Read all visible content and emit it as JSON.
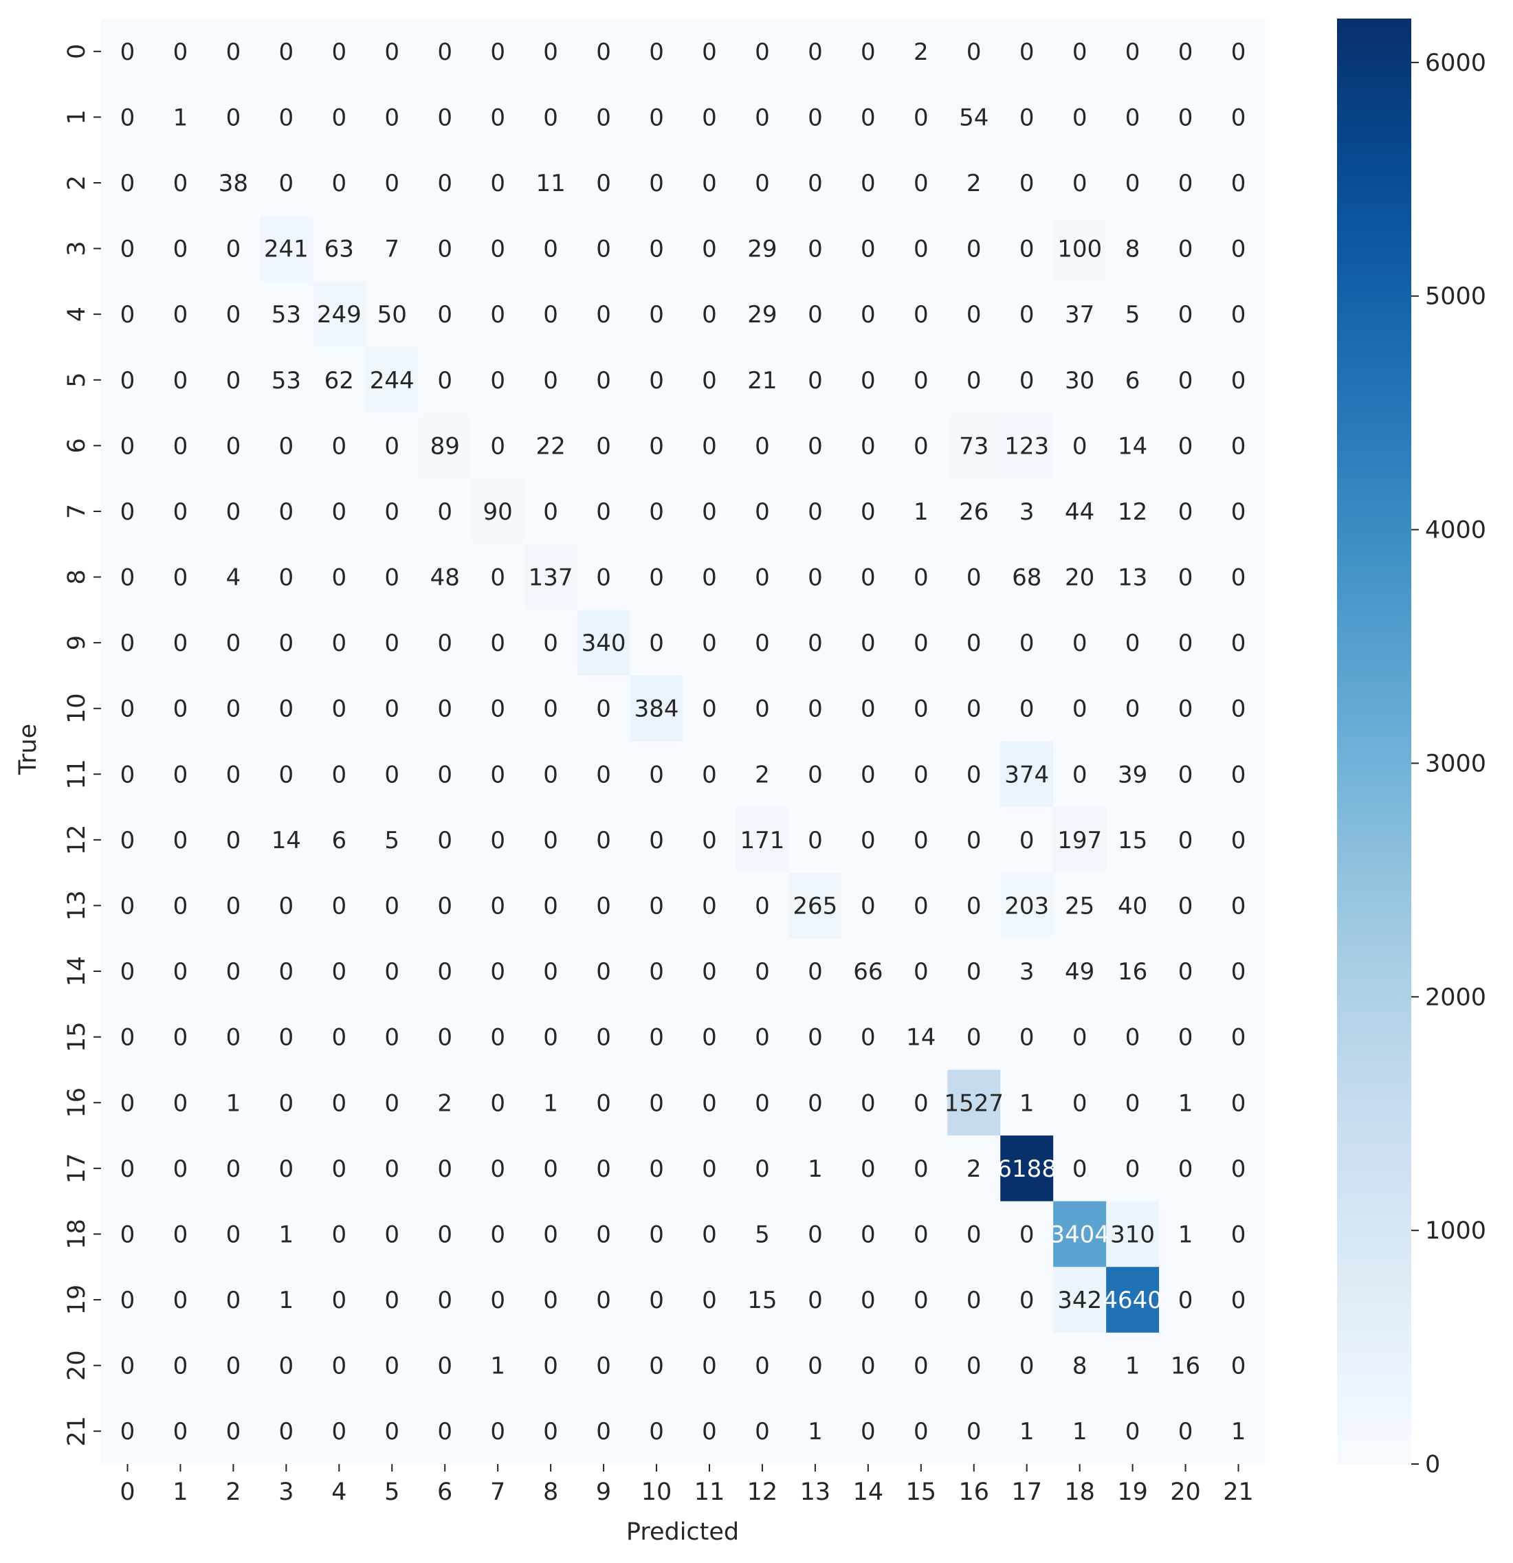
{
  "chart_data": {
    "type": "heatmap",
    "title": "",
    "xlabel": "Predicted",
    "ylabel": "True",
    "x_tick_labels": [
      "0",
      "1",
      "2",
      "3",
      "4",
      "5",
      "6",
      "7",
      "8",
      "9",
      "10",
      "11",
      "12",
      "13",
      "14",
      "15",
      "16",
      "17",
      "18",
      "19",
      "20",
      "21"
    ],
    "y_tick_labels": [
      "0",
      "1",
      "2",
      "3",
      "4",
      "5",
      "6",
      "7",
      "8",
      "9",
      "10",
      "11",
      "12",
      "13",
      "14",
      "15",
      "16",
      "17",
      "18",
      "19",
      "20",
      "21"
    ],
    "matrix": [
      [
        0,
        0,
        0,
        0,
        0,
        0,
        0,
        0,
        0,
        0,
        0,
        0,
        0,
        0,
        0,
        2,
        0,
        0,
        0,
        0,
        0,
        0
      ],
      [
        0,
        1,
        0,
        0,
        0,
        0,
        0,
        0,
        0,
        0,
        0,
        0,
        0,
        0,
        0,
        0,
        54,
        0,
        0,
        0,
        0,
        0
      ],
      [
        0,
        0,
        38,
        0,
        0,
        0,
        0,
        0,
        11,
        0,
        0,
        0,
        0,
        0,
        0,
        0,
        2,
        0,
        0,
        0,
        0,
        0
      ],
      [
        0,
        0,
        0,
        241,
        63,
        7,
        0,
        0,
        0,
        0,
        0,
        0,
        29,
        0,
        0,
        0,
        0,
        0,
        100,
        8,
        0,
        0
      ],
      [
        0,
        0,
        0,
        53,
        249,
        50,
        0,
        0,
        0,
        0,
        0,
        0,
        29,
        0,
        0,
        0,
        0,
        0,
        37,
        5,
        0,
        0
      ],
      [
        0,
        0,
        0,
        53,
        62,
        244,
        0,
        0,
        0,
        0,
        0,
        0,
        21,
        0,
        0,
        0,
        0,
        0,
        30,
        6,
        0,
        0
      ],
      [
        0,
        0,
        0,
        0,
        0,
        0,
        89,
        0,
        22,
        0,
        0,
        0,
        0,
        0,
        0,
        0,
        73,
        123,
        0,
        14,
        0,
        0
      ],
      [
        0,
        0,
        0,
        0,
        0,
        0,
        0,
        90,
        0,
        0,
        0,
        0,
        0,
        0,
        0,
        1,
        26,
        3,
        44,
        12,
        0,
        0
      ],
      [
        0,
        0,
        4,
        0,
        0,
        0,
        48,
        0,
        137,
        0,
        0,
        0,
        0,
        0,
        0,
        0,
        0,
        68,
        20,
        13,
        0,
        0
      ],
      [
        0,
        0,
        0,
        0,
        0,
        0,
        0,
        0,
        0,
        340,
        0,
        0,
        0,
        0,
        0,
        0,
        0,
        0,
        0,
        0,
        0,
        0
      ],
      [
        0,
        0,
        0,
        0,
        0,
        0,
        0,
        0,
        0,
        0,
        384,
        0,
        0,
        0,
        0,
        0,
        0,
        0,
        0,
        0,
        0,
        0
      ],
      [
        0,
        0,
        0,
        0,
        0,
        0,
        0,
        0,
        0,
        0,
        0,
        0,
        2,
        0,
        0,
        0,
        0,
        374,
        0,
        39,
        0,
        0
      ],
      [
        0,
        0,
        0,
        14,
        6,
        5,
        0,
        0,
        0,
        0,
        0,
        0,
        171,
        0,
        0,
        0,
        0,
        0,
        197,
        15,
        0,
        0
      ],
      [
        0,
        0,
        0,
        0,
        0,
        0,
        0,
        0,
        0,
        0,
        0,
        0,
        0,
        265,
        0,
        0,
        0,
        203,
        25,
        40,
        0,
        0
      ],
      [
        0,
        0,
        0,
        0,
        0,
        0,
        0,
        0,
        0,
        0,
        0,
        0,
        0,
        0,
        66,
        0,
        0,
        3,
        49,
        16,
        0,
        0
      ],
      [
        0,
        0,
        0,
        0,
        0,
        0,
        0,
        0,
        0,
        0,
        0,
        0,
        0,
        0,
        0,
        14,
        0,
        0,
        0,
        0,
        0,
        0
      ],
      [
        0,
        0,
        1,
        0,
        0,
        0,
        2,
        0,
        1,
        0,
        0,
        0,
        0,
        0,
        0,
        0,
        1527,
        1,
        0,
        0,
        1,
        0
      ],
      [
        0,
        0,
        0,
        0,
        0,
        0,
        0,
        0,
        0,
        0,
        0,
        0,
        0,
        1,
        0,
        0,
        2,
        6188,
        0,
        0,
        0,
        0
      ],
      [
        0,
        0,
        0,
        1,
        0,
        0,
        0,
        0,
        0,
        0,
        0,
        0,
        5,
        0,
        0,
        0,
        0,
        0,
        3404,
        310,
        1,
        0
      ],
      [
        0,
        0,
        0,
        1,
        0,
        0,
        0,
        0,
        0,
        0,
        0,
        0,
        15,
        0,
        0,
        0,
        0,
        0,
        342,
        4640,
        0,
        0
      ],
      [
        0,
        0,
        0,
        0,
        0,
        0,
        0,
        1,
        0,
        0,
        0,
        0,
        0,
        0,
        0,
        0,
        0,
        0,
        8,
        1,
        16,
        0
      ],
      [
        0,
        0,
        0,
        0,
        0,
        0,
        0,
        0,
        0,
        0,
        0,
        0,
        0,
        1,
        0,
        0,
        0,
        1,
        1,
        0,
        0,
        1
      ]
    ],
    "colormap": "Blues",
    "vmin": 0,
    "vmax": 6188,
    "colorbar_ticks": [
      0,
      1000,
      2000,
      3000,
      4000,
      5000,
      6000
    ],
    "colorbar_tick_labels": [
      "0",
      "1000",
      "2000",
      "3000",
      "4000",
      "5000",
      "6000"
    ],
    "annotations": true,
    "grid": false,
    "colors": {
      "text_dark": "#262626",
      "text_light": "#ffffff",
      "axis": "#262626"
    }
  }
}
